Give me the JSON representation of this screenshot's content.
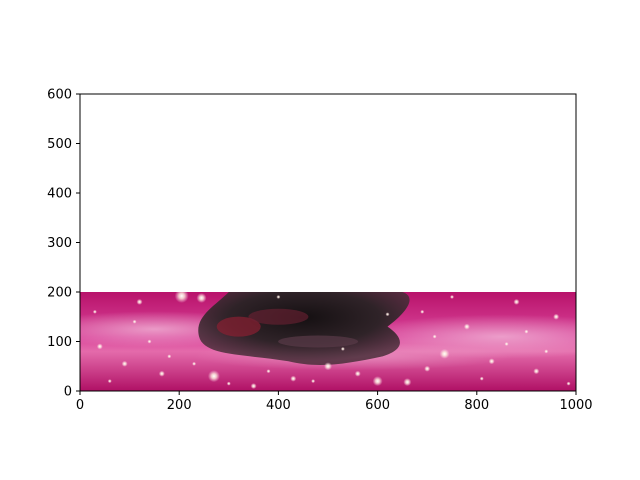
{
  "chart_data": {
    "type": "image",
    "title": "",
    "xlabel": "",
    "ylabel": "",
    "xlim": [
      0,
      1000
    ],
    "ylim": [
      0,
      600
    ],
    "image_extent": {
      "x": [
        0,
        1000
      ],
      "y": [
        0,
        200
      ]
    },
    "xticks": [
      0,
      200,
      400,
      600,
      800,
      1000
    ],
    "yticks": [
      0,
      100,
      200,
      300,
      400,
      500,
      600
    ],
    "xtick_labels": [
      "0",
      "200",
      "400",
      "600",
      "800",
      "1000"
    ],
    "ytick_labels": [
      "0",
      "100",
      "200",
      "300",
      "400",
      "500",
      "600"
    ],
    "grid": false,
    "colors": {
      "nebula_magenta": "#c2176e",
      "nebula_pink": "#e35aa0",
      "nebula_light": "#f0a6cf",
      "dust_dark": "#2a2226",
      "dust_red": "#8a1f32"
    }
  }
}
